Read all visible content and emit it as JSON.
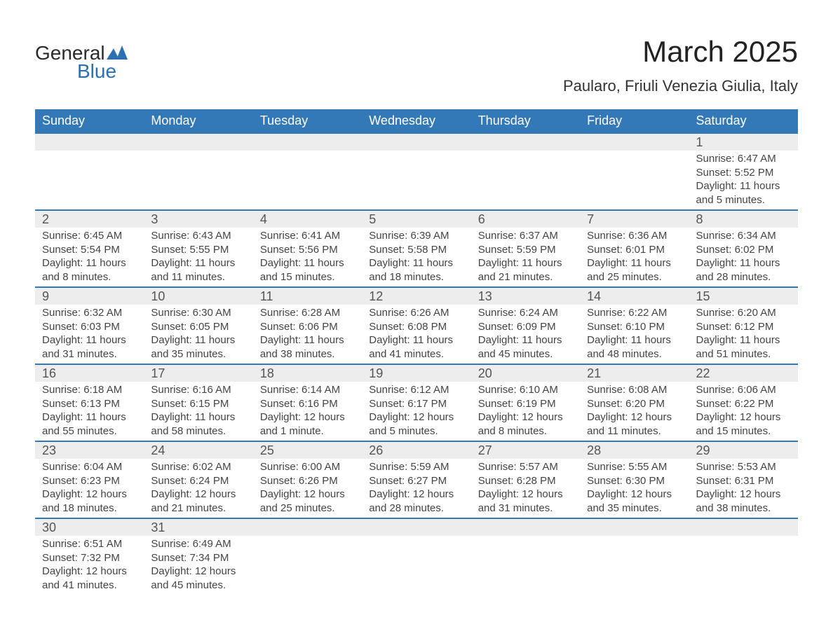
{
  "brand": {
    "name1": "General",
    "name2": "Blue",
    "flag_color": "#2d6fb3"
  },
  "title": "March 2025",
  "subtitle": "Paularo, Friuli Venezia Giulia, Italy",
  "colors": {
    "header_bg": "#3379b7",
    "header_text": "#ffffff",
    "daynum_bg": "#ededed",
    "row_divider": "#3379b7",
    "body_text": "#444444",
    "title_text": "#222222"
  },
  "typography": {
    "title_fontsize": 42,
    "subtitle_fontsize": 22,
    "header_fontsize": 18,
    "daynum_fontsize": 18,
    "detail_fontsize": 15
  },
  "weekdays": [
    "Sunday",
    "Monday",
    "Tuesday",
    "Wednesday",
    "Thursday",
    "Friday",
    "Saturday"
  ],
  "weeks": [
    [
      null,
      null,
      null,
      null,
      null,
      null,
      {
        "n": "1",
        "sr": "Sunrise: 6:47 AM",
        "ss": "Sunset: 5:52 PM",
        "d1": "Daylight: 11 hours",
        "d2": "and 5 minutes."
      }
    ],
    [
      {
        "n": "2",
        "sr": "Sunrise: 6:45 AM",
        "ss": "Sunset: 5:54 PM",
        "d1": "Daylight: 11 hours",
        "d2": "and 8 minutes."
      },
      {
        "n": "3",
        "sr": "Sunrise: 6:43 AM",
        "ss": "Sunset: 5:55 PM",
        "d1": "Daylight: 11 hours",
        "d2": "and 11 minutes."
      },
      {
        "n": "4",
        "sr": "Sunrise: 6:41 AM",
        "ss": "Sunset: 5:56 PM",
        "d1": "Daylight: 11 hours",
        "d2": "and 15 minutes."
      },
      {
        "n": "5",
        "sr": "Sunrise: 6:39 AM",
        "ss": "Sunset: 5:58 PM",
        "d1": "Daylight: 11 hours",
        "d2": "and 18 minutes."
      },
      {
        "n": "6",
        "sr": "Sunrise: 6:37 AM",
        "ss": "Sunset: 5:59 PM",
        "d1": "Daylight: 11 hours",
        "d2": "and 21 minutes."
      },
      {
        "n": "7",
        "sr": "Sunrise: 6:36 AM",
        "ss": "Sunset: 6:01 PM",
        "d1": "Daylight: 11 hours",
        "d2": "and 25 minutes."
      },
      {
        "n": "8",
        "sr": "Sunrise: 6:34 AM",
        "ss": "Sunset: 6:02 PM",
        "d1": "Daylight: 11 hours",
        "d2": "and 28 minutes."
      }
    ],
    [
      {
        "n": "9",
        "sr": "Sunrise: 6:32 AM",
        "ss": "Sunset: 6:03 PM",
        "d1": "Daylight: 11 hours",
        "d2": "and 31 minutes."
      },
      {
        "n": "10",
        "sr": "Sunrise: 6:30 AM",
        "ss": "Sunset: 6:05 PM",
        "d1": "Daylight: 11 hours",
        "d2": "and 35 minutes."
      },
      {
        "n": "11",
        "sr": "Sunrise: 6:28 AM",
        "ss": "Sunset: 6:06 PM",
        "d1": "Daylight: 11 hours",
        "d2": "and 38 minutes."
      },
      {
        "n": "12",
        "sr": "Sunrise: 6:26 AM",
        "ss": "Sunset: 6:08 PM",
        "d1": "Daylight: 11 hours",
        "d2": "and 41 minutes."
      },
      {
        "n": "13",
        "sr": "Sunrise: 6:24 AM",
        "ss": "Sunset: 6:09 PM",
        "d1": "Daylight: 11 hours",
        "d2": "and 45 minutes."
      },
      {
        "n": "14",
        "sr": "Sunrise: 6:22 AM",
        "ss": "Sunset: 6:10 PM",
        "d1": "Daylight: 11 hours",
        "d2": "and 48 minutes."
      },
      {
        "n": "15",
        "sr": "Sunrise: 6:20 AM",
        "ss": "Sunset: 6:12 PM",
        "d1": "Daylight: 11 hours",
        "d2": "and 51 minutes."
      }
    ],
    [
      {
        "n": "16",
        "sr": "Sunrise: 6:18 AM",
        "ss": "Sunset: 6:13 PM",
        "d1": "Daylight: 11 hours",
        "d2": "and 55 minutes."
      },
      {
        "n": "17",
        "sr": "Sunrise: 6:16 AM",
        "ss": "Sunset: 6:15 PM",
        "d1": "Daylight: 11 hours",
        "d2": "and 58 minutes."
      },
      {
        "n": "18",
        "sr": "Sunrise: 6:14 AM",
        "ss": "Sunset: 6:16 PM",
        "d1": "Daylight: 12 hours",
        "d2": "and 1 minute."
      },
      {
        "n": "19",
        "sr": "Sunrise: 6:12 AM",
        "ss": "Sunset: 6:17 PM",
        "d1": "Daylight: 12 hours",
        "d2": "and 5 minutes."
      },
      {
        "n": "20",
        "sr": "Sunrise: 6:10 AM",
        "ss": "Sunset: 6:19 PM",
        "d1": "Daylight: 12 hours",
        "d2": "and 8 minutes."
      },
      {
        "n": "21",
        "sr": "Sunrise: 6:08 AM",
        "ss": "Sunset: 6:20 PM",
        "d1": "Daylight: 12 hours",
        "d2": "and 11 minutes."
      },
      {
        "n": "22",
        "sr": "Sunrise: 6:06 AM",
        "ss": "Sunset: 6:22 PM",
        "d1": "Daylight: 12 hours",
        "d2": "and 15 minutes."
      }
    ],
    [
      {
        "n": "23",
        "sr": "Sunrise: 6:04 AM",
        "ss": "Sunset: 6:23 PM",
        "d1": "Daylight: 12 hours",
        "d2": "and 18 minutes."
      },
      {
        "n": "24",
        "sr": "Sunrise: 6:02 AM",
        "ss": "Sunset: 6:24 PM",
        "d1": "Daylight: 12 hours",
        "d2": "and 21 minutes."
      },
      {
        "n": "25",
        "sr": "Sunrise: 6:00 AM",
        "ss": "Sunset: 6:26 PM",
        "d1": "Daylight: 12 hours",
        "d2": "and 25 minutes."
      },
      {
        "n": "26",
        "sr": "Sunrise: 5:59 AM",
        "ss": "Sunset: 6:27 PM",
        "d1": "Daylight: 12 hours",
        "d2": "and 28 minutes."
      },
      {
        "n": "27",
        "sr": "Sunrise: 5:57 AM",
        "ss": "Sunset: 6:28 PM",
        "d1": "Daylight: 12 hours",
        "d2": "and 31 minutes."
      },
      {
        "n": "28",
        "sr": "Sunrise: 5:55 AM",
        "ss": "Sunset: 6:30 PM",
        "d1": "Daylight: 12 hours",
        "d2": "and 35 minutes."
      },
      {
        "n": "29",
        "sr": "Sunrise: 5:53 AM",
        "ss": "Sunset: 6:31 PM",
        "d1": "Daylight: 12 hours",
        "d2": "and 38 minutes."
      }
    ],
    [
      {
        "n": "30",
        "sr": "Sunrise: 6:51 AM",
        "ss": "Sunset: 7:32 PM",
        "d1": "Daylight: 12 hours",
        "d2": "and 41 minutes."
      },
      {
        "n": "31",
        "sr": "Sunrise: 6:49 AM",
        "ss": "Sunset: 7:34 PM",
        "d1": "Daylight: 12 hours",
        "d2": "and 45 minutes."
      },
      null,
      null,
      null,
      null,
      null
    ]
  ]
}
